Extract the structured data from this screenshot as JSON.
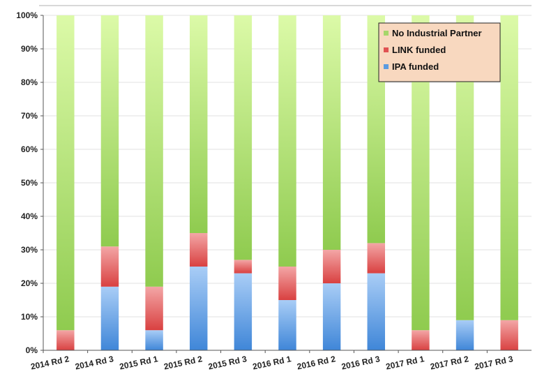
{
  "chart_data": {
    "type": "bar",
    "stacked": true,
    "percent": true,
    "categories": [
      "2014 Rd 2",
      "2014 Rd 3",
      "2015 Rd 1",
      "2015 Rd 2",
      "2015 Rd 3",
      "2016 Rd 1",
      "2016 Rd 2",
      "2016 Rd 3",
      "2017 Rd 1",
      "2017 Rd 2",
      "2017 Rd 3"
    ],
    "series": [
      {
        "name": "IPA funded",
        "color": "#5b9be0",
        "values": [
          0,
          19,
          6,
          25,
          23,
          15,
          20,
          23,
          0,
          9,
          0
        ]
      },
      {
        "name": "LINK funded",
        "color": "#e05252",
        "values": [
          6,
          12,
          13,
          10,
          4,
          10,
          10,
          9,
          6,
          0,
          9
        ]
      },
      {
        "name": "No Industrial Partner",
        "color": "#a6d66a",
        "values": [
          94,
          69,
          81,
          65,
          73,
          75,
          70,
          68,
          94,
          91,
          91
        ]
      }
    ],
    "yticks": [
      "0%",
      "10%",
      "20%",
      "30%",
      "40%",
      "50%",
      "60%",
      "70%",
      "80%",
      "90%",
      "100%"
    ],
    "ylim": [
      0,
      100
    ],
    "legend_position": "top-right",
    "legend_order": [
      "No Industrial Partner",
      "LINK funded",
      "IPA funded"
    ],
    "title": "",
    "xlabel": "",
    "ylabel": ""
  }
}
